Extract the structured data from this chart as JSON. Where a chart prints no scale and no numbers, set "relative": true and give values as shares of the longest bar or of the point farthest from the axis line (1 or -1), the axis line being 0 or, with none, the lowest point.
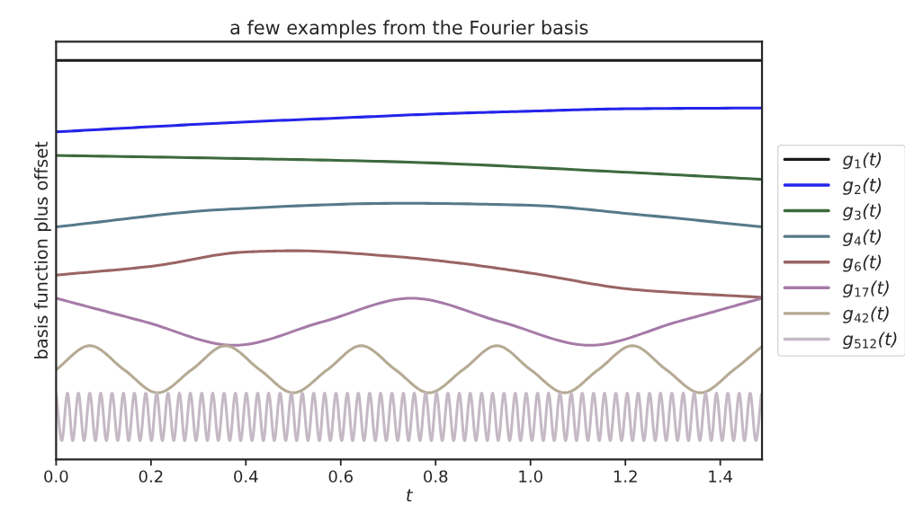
{
  "chart_data": {
    "type": "line",
    "title": "a few examples from the Fourier basis",
    "xlabel": "t",
    "ylabel": "basis function plus offset",
    "relative": true,
    "xlim": [
      0,
      1.488
    ],
    "xticks": [
      {
        "value": 0,
        "label": "0.0"
      },
      {
        "value": 0.2,
        "label": "0.2"
      },
      {
        "value": 0.4,
        "label": "0.4"
      },
      {
        "value": 0.6,
        "label": "0.6"
      },
      {
        "value": 0.8,
        "label": "0.8"
      },
      {
        "value": 1.0,
        "label": "1.0"
      },
      {
        "value": 1.2,
        "label": "1.2"
      },
      {
        "value": 1.4,
        "label": "1.4"
      }
    ],
    "grid": false,
    "legend": "right",
    "marker": "none",
    "line_style": "solid",
    "series": [
      {
        "name": "g$_{1}$(t)",
        "color": "#1a1a1a",
        "x": [
          0,
          1.488
        ],
        "values": [
          1.0,
          1.0
        ]
      },
      {
        "name": "g$_{2}$(t)",
        "color": "#2424ea",
        "x": [
          0,
          0.2,
          0.4,
          0.6,
          0.8,
          1.0,
          1.2,
          1.488
        ],
        "values": [
          0.821,
          0.834,
          0.846,
          0.856,
          0.866,
          0.873,
          0.879,
          0.881
        ]
      },
      {
        "name": "g$_{3}$(t)",
        "color": "#3d6a3d",
        "x": [
          0,
          0.4,
          0.72,
          1.216,
          1.488
        ],
        "values": [
          0.762,
          0.754,
          0.746,
          0.719,
          0.702
        ]
      },
      {
        "name": "g$_{4}$(t)",
        "color": "#56798a",
        "x": [
          0,
          0.36,
          0.73,
          1.0,
          1.216,
          1.488
        ],
        "values": [
          0.583,
          0.627,
          0.642,
          0.637,
          0.615,
          0.583
        ]
      },
      {
        "name": "g$_{6}$(t)",
        "color": "#9a6464",
        "x": [
          0,
          0.2,
          0.4,
          0.5,
          0.72,
          0.85,
          1.0,
          1.216,
          1.488
        ],
        "values": [
          0.462,
          0.484,
          0.52,
          0.523,
          0.508,
          0.492,
          0.467,
          0.426,
          0.406
        ]
      },
      {
        "name": "g$_{17}$(t)",
        "color": "#a67aa8",
        "x": [
          0,
          0.187,
          0.375,
          0.562,
          0.749,
          0.937,
          1.126,
          1.31,
          1.488
        ],
        "values": [
          0.404,
          0.345,
          0.286,
          0.345,
          0.404,
          0.345,
          0.286,
          0.345,
          0.404
        ]
      },
      {
        "name": "g$_{42}$(t)",
        "color": "#b5aa93",
        "x": [
          0,
          0.071,
          0.143,
          0.214,
          0.286,
          0.357,
          0.429,
          0.5,
          0.572,
          0.643,
          0.715,
          0.786,
          0.858,
          0.929,
          1.0,
          1.072,
          1.143,
          1.215,
          1.286,
          1.358,
          1.429,
          1.488
        ],
        "values": [
          0.225,
          0.285,
          0.225,
          0.167,
          0.225,
          0.285,
          0.225,
          0.167,
          0.225,
          0.285,
          0.225,
          0.167,
          0.225,
          0.285,
          0.225,
          0.167,
          0.225,
          0.285,
          0.225,
          0.167,
          0.225,
          0.283
        ]
      },
      {
        "name": "g$_{512}$(t)",
        "color": "#c5b9c5",
        "x": [
          0,
          0.012,
          0.024,
          0.035,
          0.047,
          0.059,
          0.071,
          0.083,
          0.094,
          0.106,
          0.118,
          0.13,
          0.142,
          0.153,
          0.165,
          0.177,
          0.189,
          0.201,
          0.212,
          0.224,
          0.236,
          0.248,
          0.26,
          0.271,
          0.283,
          0.295,
          0.307,
          0.319,
          0.33,
          0.342,
          0.354,
          0.366,
          0.378,
          0.389,
          0.401,
          0.413,
          0.425,
          0.437,
          0.448,
          0.46,
          0.472,
          0.484,
          0.496,
          0.507,
          0.519,
          0.531,
          0.543,
          0.555,
          0.566,
          0.578,
          0.59,
          0.602,
          0.614,
          0.625,
          0.637,
          0.649,
          0.661,
          0.673,
          0.684,
          0.696,
          0.708,
          0.72,
          0.732,
          0.743,
          0.755,
          0.767,
          0.779,
          0.791,
          0.802,
          0.814,
          0.826,
          0.838,
          0.85,
          0.861,
          0.873,
          0.885,
          0.897,
          0.909,
          0.92,
          0.932,
          0.944,
          0.956,
          0.968,
          0.979,
          0.991,
          1.003,
          1.015,
          1.027,
          1.038,
          1.05,
          1.062,
          1.074,
          1.086,
          1.097,
          1.109,
          1.121,
          1.133,
          1.145,
          1.156,
          1.168,
          1.18,
          1.192,
          1.204,
          1.215,
          1.227,
          1.239,
          1.251,
          1.263,
          1.274,
          1.286,
          1.298,
          1.31,
          1.322,
          1.333,
          1.345,
          1.357,
          1.369,
          1.381,
          1.392,
          1.404,
          1.416,
          1.428,
          1.44,
          1.451,
          1.463,
          1.475,
          1.487
        ],
        "values": [
          0.166,
          0.047,
          0.166,
          0.047,
          0.166,
          0.047,
          0.166,
          0.047,
          0.166,
          0.047,
          0.166,
          0.047,
          0.166,
          0.047,
          0.166,
          0.047,
          0.166,
          0.047,
          0.166,
          0.047,
          0.166,
          0.047,
          0.166,
          0.047,
          0.166,
          0.047,
          0.166,
          0.047,
          0.166,
          0.047,
          0.166,
          0.047,
          0.166,
          0.047,
          0.166,
          0.047,
          0.166,
          0.047,
          0.166,
          0.047,
          0.166,
          0.047,
          0.166,
          0.047,
          0.166,
          0.047,
          0.166,
          0.047,
          0.166,
          0.047,
          0.166,
          0.047,
          0.166,
          0.047,
          0.166,
          0.047,
          0.166,
          0.047,
          0.166,
          0.047,
          0.166,
          0.047,
          0.166,
          0.047,
          0.166,
          0.047,
          0.166,
          0.047,
          0.166,
          0.047,
          0.166,
          0.047,
          0.166,
          0.047,
          0.166,
          0.047,
          0.166,
          0.047,
          0.166,
          0.047,
          0.166,
          0.047,
          0.166,
          0.047,
          0.166,
          0.047,
          0.166,
          0.047,
          0.166,
          0.047,
          0.166,
          0.047,
          0.166,
          0.047,
          0.166,
          0.047,
          0.166,
          0.047,
          0.166,
          0.047,
          0.166,
          0.047,
          0.166,
          0.047,
          0.166,
          0.047,
          0.166,
          0.047,
          0.166,
          0.047,
          0.166,
          0.047,
          0.166,
          0.047,
          0.166,
          0.047,
          0.166,
          0.047,
          0.166,
          0.047,
          0.166,
          0.047,
          0.166,
          0.047,
          0.166,
          0.047,
          0.166
        ]
      }
    ]
  }
}
